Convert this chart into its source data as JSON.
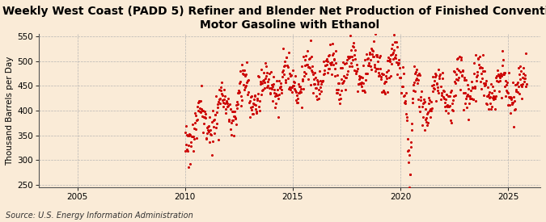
{
  "title": "Weekly West Coast (PADD 5) Refiner and Blender Net Production of Finished Conventional\nMotor Gasoline with Ethanol",
  "ylabel": "Thousand Barrels per Day",
  "source": "Source: U.S. Energy Information Administration",
  "background_color": "#faebd7",
  "dot_color": "#cc0000",
  "grid_color": "#b0b0b0",
  "ylim": [
    245,
    555
  ],
  "yticks": [
    250,
    300,
    350,
    400,
    450,
    500,
    550
  ],
  "xlim_start": 2003.2,
  "xlim_end": 2026.5,
  "xticks": [
    2005,
    2010,
    2015,
    2020,
    2025
  ],
  "title_fontsize": 10.0,
  "ylabel_fontsize": 7.5,
  "source_fontsize": 7.0,
  "tick_fontsize": 7.5,
  "markersize": 2.2
}
